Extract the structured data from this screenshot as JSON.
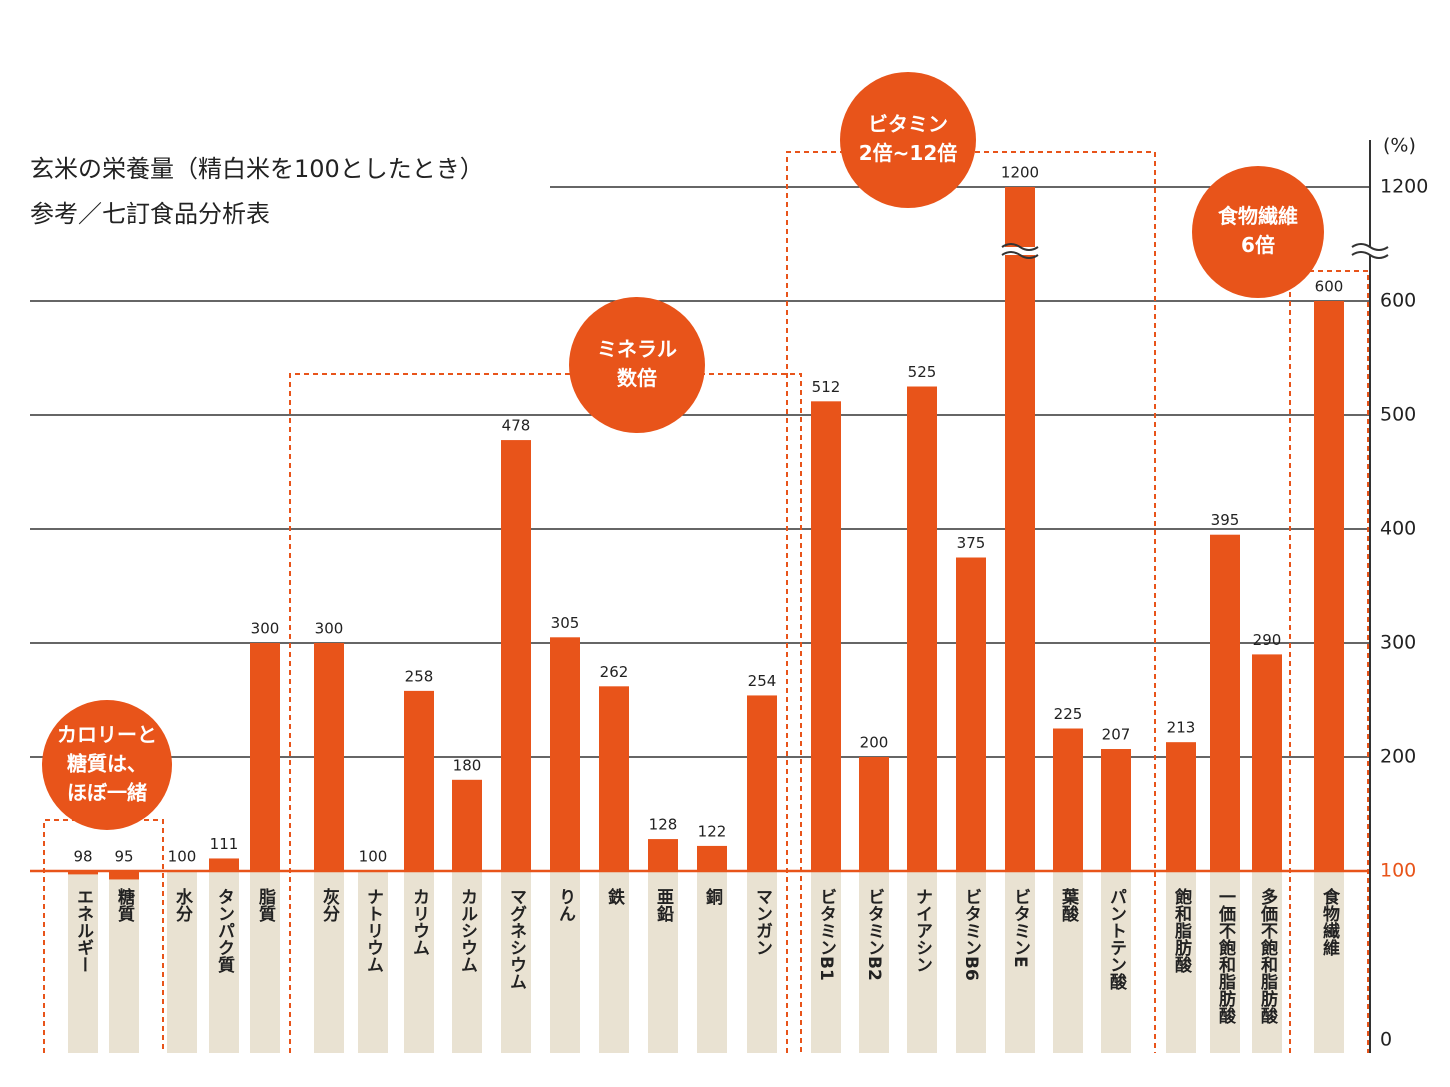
{
  "chart_data": {
    "type": "bar",
    "title": "玄米の栄養量（精白米を100としたとき）",
    "subtitle": "参考／七訂食品分析表",
    "y_unit": "(%)",
    "categories": [
      "エネルギー",
      "糖質",
      "水分",
      "タンパク質",
      "脂質",
      "灰分",
      "ナトリウム",
      "カリウム",
      "カルシウム",
      "マグネシウム",
      "りん",
      "鉄",
      "亜鉛",
      "銅",
      "マンガン",
      "ビタミンB1",
      "ビタミンB2",
      "ナイアシン",
      "ビタミンB6",
      "ビタミンE",
      "葉酸",
      "パントテン酸",
      "飽和脂肪酸",
      "一価不飽和脂肪酸",
      "多価不飽和脂肪酸",
      "食物繊維"
    ],
    "values": [
      98,
      95,
      100,
      111,
      300,
      300,
      100,
      258,
      180,
      478,
      305,
      262,
      128,
      122,
      254,
      512,
      200,
      525,
      375,
      1200,
      225,
      207,
      213,
      395,
      290,
      600
    ],
    "color": "#e8541a",
    "ylim": [
      0,
      1200
    ],
    "yticks": [
      0,
      100,
      200,
      300,
      400,
      500,
      600,
      1200
    ],
    "broken_axis": true,
    "grid": true,
    "annotations": [
      {
        "lines": [
          "カロリーと",
          "糖質は、",
          "ほぼ一緒"
        ]
      },
      {
        "lines": [
          "ミネラル",
          "数倍"
        ]
      },
      {
        "lines": [
          "ビタミン",
          "2倍~12倍"
        ]
      },
      {
        "lines": [
          "食物繊維",
          "6倍"
        ]
      }
    ]
  }
}
